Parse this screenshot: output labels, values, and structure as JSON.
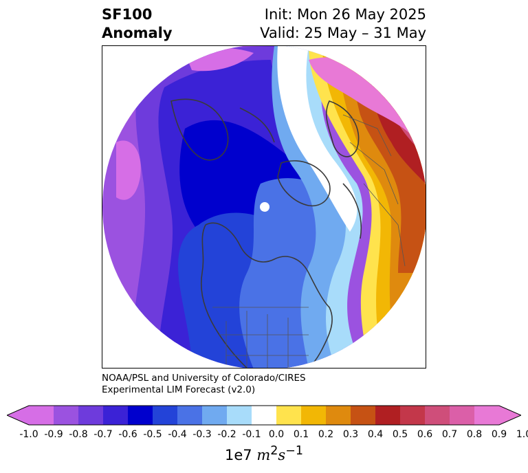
{
  "title": {
    "left_line1": "SF100",
    "left_line2": "Anomaly",
    "right_line1": "Init: Mon 26 May 2025",
    "right_line2": "Valid: 25 May – 31 May"
  },
  "credit": {
    "line1": "NOAA/PSL and University of Colorado/CIRES",
    "line2": "Experimental LIM Forecast (v2.0)"
  },
  "colorbar": {
    "ticks": [
      "-1.0",
      "-0.9",
      "-0.8",
      "-0.7",
      "-0.6",
      "-0.5",
      "-0.4",
      "-0.3",
      "-0.2",
      "-0.1",
      "0.0",
      "0.1",
      "0.2",
      "0.3",
      "0.4",
      "0.5",
      "0.6",
      "0.7",
      "0.8",
      "0.9",
      "1.0"
    ],
    "colors": [
      "#d66ee6",
      "#9b52e0",
      "#6e3bdc",
      "#3b22d6",
      "#0000cd",
      "#2343d8",
      "#4a72e6",
      "#70aaf0",
      "#a8dcfa",
      "#ffffff",
      "#ffe34d",
      "#f2b705",
      "#df8a0e",
      "#c65214",
      "#b01f22",
      "#c3374a",
      "#cf4e7a",
      "#db5fa8",
      "#e879d6"
    ],
    "under_color": "#d66ee6",
    "over_color": "#e879d6",
    "units_prefix": "1e7 ",
    "units_math": "m",
    "units_sup1": "2",
    "units_math2": "s",
    "units_sup2": "−1"
  },
  "map": {
    "projection": "north polar stereographic",
    "pole_marker_color": "#ffffff",
    "coastline_color": "#3a3a3a"
  }
}
